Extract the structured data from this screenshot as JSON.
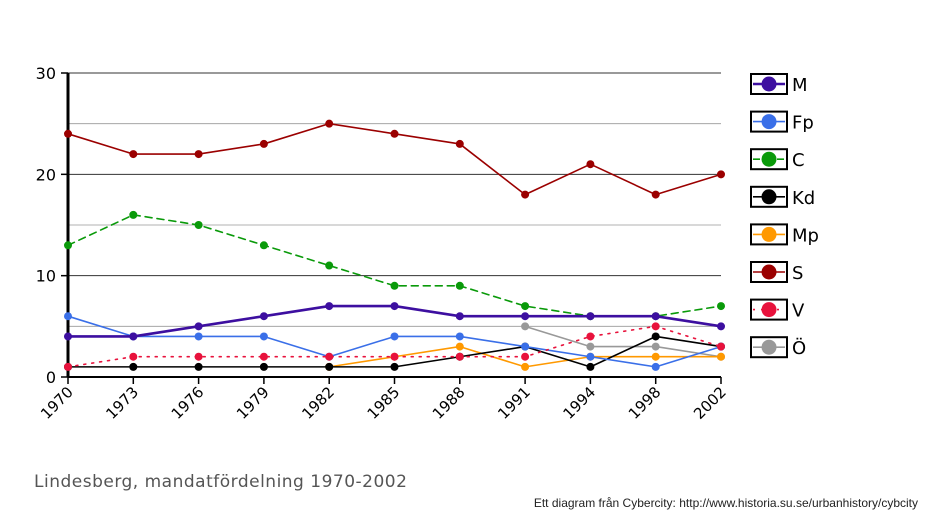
{
  "chart_data": {
    "type": "line",
    "title": "",
    "xlabel": "",
    "ylabel": "",
    "ylim": [
      0,
      30
    ],
    "yticks": [
      "0",
      "10",
      "20",
      "30"
    ],
    "x": [
      "1970",
      "1973",
      "1976",
      "1979",
      "1982",
      "1985",
      "1988",
      "1991",
      "1994",
      "1998",
      "2002"
    ],
    "grid": true,
    "legend_position": "right",
    "series": [
      {
        "name": "M",
        "color": "#3d0fa0",
        "style": "solid-thick",
        "values": [
          4,
          4,
          5,
          6,
          7,
          7,
          6,
          6,
          6,
          6,
          5
        ]
      },
      {
        "name": "Fp",
        "color": "#3a6fe8",
        "style": "solid",
        "values": [
          6,
          4,
          4,
          4,
          2,
          4,
          4,
          3,
          2,
          1,
          3
        ]
      },
      {
        "name": "C",
        "color": "#0a9a0a",
        "style": "dashed",
        "values": [
          13,
          16,
          15,
          13,
          11,
          9,
          9,
          7,
          6,
          6,
          7
        ]
      },
      {
        "name": "Kd",
        "color": "#000000",
        "style": "solid",
        "values": [
          1,
          1,
          1,
          1,
          1,
          1,
          2,
          3,
          1,
          4,
          3
        ]
      },
      {
        "name": "Mp",
        "color": "#ff9900",
        "style": "solid",
        "values": [
          null,
          null,
          null,
          null,
          1,
          2,
          3,
          1,
          2,
          2,
          2
        ]
      },
      {
        "name": "S",
        "color": "#9b0000",
        "style": "solid",
        "values": [
          24,
          22,
          22,
          23,
          25,
          24,
          23,
          18,
          21,
          18,
          20
        ]
      },
      {
        "name": "V",
        "color": "#e8123c",
        "style": "dotted",
        "values": [
          1,
          2,
          2,
          2,
          2,
          2,
          2,
          2,
          4,
          5,
          3
        ]
      },
      {
        "name": "Ö",
        "color": "#999999",
        "style": "solid",
        "values": [
          null,
          null,
          null,
          null,
          null,
          null,
          null,
          5,
          3,
          3,
          2
        ]
      }
    ]
  },
  "caption": "Lindesberg, mandatfördelning 1970-2002",
  "credit": "Ett diagram från Cybercity: http://www.historia.su.se/urbanhistory/cybcity"
}
